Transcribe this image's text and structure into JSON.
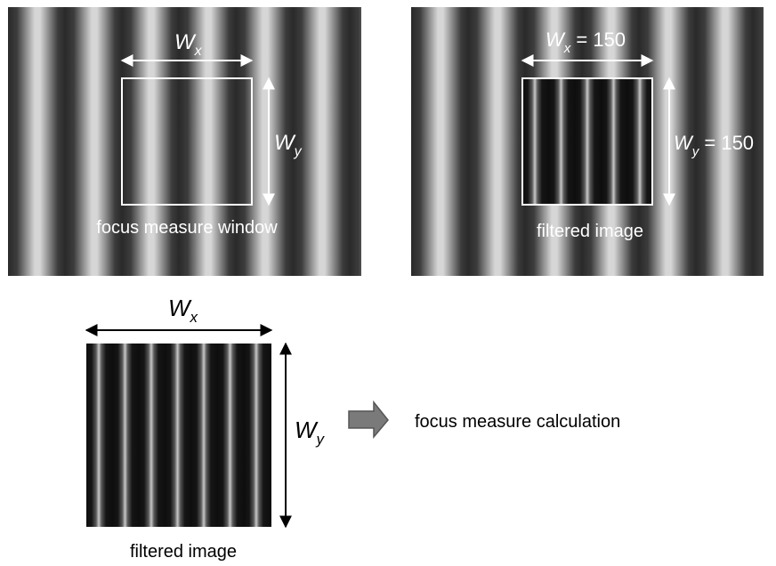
{
  "panels": {
    "top_left": {
      "width_label": {
        "main": "W",
        "sub": "x"
      },
      "height_label": {
        "main": "W",
        "sub": "y"
      },
      "caption": "focus measure window"
    },
    "top_right": {
      "width_label": {
        "main": "W",
        "sub": "x",
        "suffix": " = 150"
      },
      "height_label": {
        "main": "W",
        "sub": "y",
        "suffix": " = 150"
      },
      "caption": "filtered image"
    },
    "bottom": {
      "width_label": {
        "main": "W",
        "sub": "x"
      },
      "height_label": {
        "main": "W",
        "sub": "y"
      },
      "caption": "filtered image",
      "arrow_target": "focus measure calculation"
    }
  },
  "colors": {
    "window_outline": "#ffffff",
    "arrow_fill": "#7a7a7a",
    "arrow_stroke": "#555555"
  }
}
